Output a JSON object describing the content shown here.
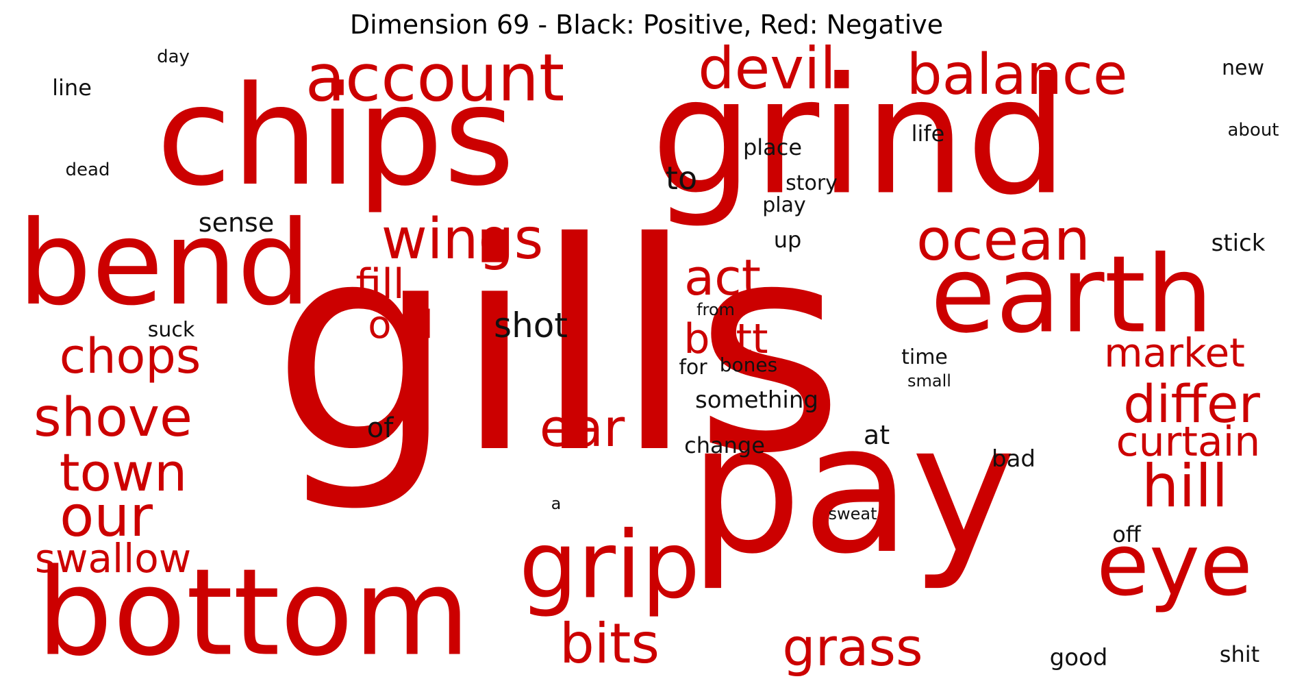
{
  "title": "Dimension 69 - Black: Positive, Red: Negative",
  "colors": {
    "positive": "#111111",
    "negative": "#cc0000"
  },
  "words": [
    {
      "text": "gills",
      "sign": "negative"
    },
    {
      "text": "grind",
      "sign": "negative"
    },
    {
      "text": "chips",
      "sign": "negative"
    },
    {
      "text": "pay",
      "sign": "negative"
    },
    {
      "text": "bottom",
      "sign": "negative"
    },
    {
      "text": "bend",
      "sign": "negative"
    },
    {
      "text": "earth",
      "sign": "negative"
    },
    {
      "text": "grip",
      "sign": "negative"
    },
    {
      "text": "eye",
      "sign": "negative"
    },
    {
      "text": "account",
      "sign": "negative"
    },
    {
      "text": "balance",
      "sign": "negative"
    },
    {
      "text": "devil",
      "sign": "negative"
    },
    {
      "text": "ocean",
      "sign": "negative"
    },
    {
      "text": "wings",
      "sign": "negative"
    },
    {
      "text": "our",
      "sign": "negative"
    },
    {
      "text": "differ",
      "sign": "negative"
    },
    {
      "text": "hill",
      "sign": "negative"
    },
    {
      "text": "shove",
      "sign": "negative"
    },
    {
      "text": "chops",
      "sign": "negative"
    },
    {
      "text": "town",
      "sign": "negative"
    },
    {
      "text": "ear",
      "sign": "negative"
    },
    {
      "text": "bits",
      "sign": "negative"
    },
    {
      "text": "act",
      "sign": "negative"
    },
    {
      "text": "grass",
      "sign": "negative"
    },
    {
      "text": "curtain",
      "sign": "negative"
    },
    {
      "text": "market",
      "sign": "negative"
    },
    {
      "text": "butt",
      "sign": "negative"
    },
    {
      "text": "swallow",
      "sign": "negative"
    },
    {
      "text": "fill",
      "sign": "negative"
    },
    {
      "text": "owl",
      "sign": "negative"
    },
    {
      "text": "shot",
      "sign": "positive"
    },
    {
      "text": "to",
      "sign": "positive"
    },
    {
      "text": "sense",
      "sign": "positive"
    },
    {
      "text": "of",
      "sign": "positive"
    },
    {
      "text": "at",
      "sign": "positive"
    },
    {
      "text": "bad",
      "sign": "positive"
    },
    {
      "text": "good",
      "sign": "positive"
    },
    {
      "text": "shit",
      "sign": "positive"
    },
    {
      "text": "stick",
      "sign": "positive"
    },
    {
      "text": "off",
      "sign": "positive"
    },
    {
      "text": "up",
      "sign": "positive"
    },
    {
      "text": "new",
      "sign": "positive"
    },
    {
      "text": "life",
      "sign": "positive"
    },
    {
      "text": "place",
      "sign": "positive"
    },
    {
      "text": "story",
      "sign": "positive"
    },
    {
      "text": "play",
      "sign": "positive"
    },
    {
      "text": "line",
      "sign": "positive"
    },
    {
      "text": "day",
      "sign": "positive"
    },
    {
      "text": "dead",
      "sign": "positive"
    },
    {
      "text": "about",
      "sign": "positive"
    },
    {
      "text": "suck",
      "sign": "positive"
    },
    {
      "text": "from",
      "sign": "positive"
    },
    {
      "text": "for",
      "sign": "positive"
    },
    {
      "text": "bones",
      "sign": "positive"
    },
    {
      "text": "time",
      "sign": "positive"
    },
    {
      "text": "small",
      "sign": "positive"
    },
    {
      "text": "something",
      "sign": "positive"
    },
    {
      "text": "change",
      "sign": "positive"
    },
    {
      "text": "a",
      "sign": "positive"
    },
    {
      "text": "sweat",
      "sign": "positive"
    }
  ]
}
